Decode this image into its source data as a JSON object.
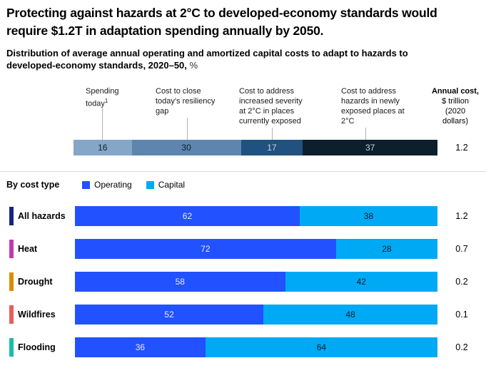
{
  "title": "Protecting against hazards at 2°C to developed-economy standards would require $1.2T in adaptation spending annually by 2050.",
  "subtitle": "Distribution of average annual operating and amortized capital costs to adapt to hazards to developed-economy standards, 2020–50,",
  "subtitle_unit": "%",
  "top_chart": {
    "headers": [
      {
        "label": "Spending today",
        "superscript": "1"
      },
      {
        "label": "Cost to close today's resiliency gap",
        "superscript": ""
      },
      {
        "label": "Cost to address increased severity at 2°C in places currently exposed",
        "superscript": ""
      },
      {
        "label": "Cost to address hazards in newly exposed places at 2°C",
        "superscript": ""
      }
    ],
    "annual_header": {
      "line1": "Annual cost,",
      "line2": "$ trillion",
      "line3": "(2020",
      "line4": "dollars)"
    },
    "segments": [
      {
        "value": 16,
        "color": "#84a7c7",
        "text_color": "#0d1f2d"
      },
      {
        "value": 30,
        "color": "#5d85ae",
        "text_color": "#0d1f2d"
      },
      {
        "value": 17,
        "color": "#21517e",
        "text_color": "#c7d5e0"
      },
      {
        "value": 37,
        "color": "#0d1f2d",
        "text_color": "#c7d5e0"
      }
    ],
    "annual_cost": "1.2"
  },
  "legend": {
    "title": "By cost type",
    "items": [
      {
        "label": "Operating",
        "color": "#2251ff"
      },
      {
        "label": "Capital",
        "color": "#00a9f4"
      }
    ]
  },
  "rows": [
    {
      "label": "All hazards",
      "accent": "#182287",
      "operating": 62,
      "capital": 38,
      "annual": "1.2"
    },
    {
      "label": "Heat",
      "accent": "#c13ab1",
      "operating": 72,
      "capital": 28,
      "annual": "0.7"
    },
    {
      "label": "Drought",
      "accent": "#d98e00",
      "operating": 58,
      "capital": 42,
      "annual": "0.2"
    },
    {
      "label": "Wildfires",
      "accent": "#ea5e57",
      "operating": 52,
      "capital": 48,
      "annual": "0.1"
    },
    {
      "label": "Flooding",
      "accent": "#19bda7",
      "operating": 36,
      "capital": 64,
      "annual": "0.2"
    }
  ],
  "colors": {
    "operating": "#2251ff",
    "capital": "#00a9f4",
    "operating_text": "#e6ebfa",
    "capital_text": "#051c2c"
  },
  "chart_data": [
    {
      "type": "bar",
      "subtype": "horizontal-stacked-single",
      "title": "Distribution of average annual operating and amortized capital costs to adapt to hazards to developed-economy standards, 2020–50, %",
      "categories": [
        "Spending today¹",
        "Cost to close today's resiliency gap",
        "Cost to address increased severity at 2°C in places currently exposed",
        "Cost to address hazards in newly exposed places at 2°C"
      ],
      "values": [
        16,
        30,
        17,
        37
      ],
      "unit": "%",
      "annual_cost_label": "Annual cost, $ trillion (2020 dollars)",
      "annual_cost": 1.2,
      "xlim": [
        0,
        100
      ],
      "legend_position": "none"
    },
    {
      "type": "bar",
      "subtype": "horizontal-stacked-multi",
      "title": "By cost type",
      "categories": [
        "All hazards",
        "Heat",
        "Drought",
        "Wildfires",
        "Flooding"
      ],
      "series": [
        {
          "name": "Operating",
          "values": [
            62,
            72,
            58,
            52,
            36
          ]
        },
        {
          "name": "Capital",
          "values": [
            38,
            28,
            42,
            48,
            64
          ]
        }
      ],
      "unit": "%",
      "annual_cost_label": "Annual cost, $ trillion (2020 dollars)",
      "annual_costs": [
        1.2,
        0.7,
        0.2,
        0.1,
        0.2
      ],
      "xlim": [
        0,
        100
      ],
      "legend_position": "top"
    }
  ]
}
